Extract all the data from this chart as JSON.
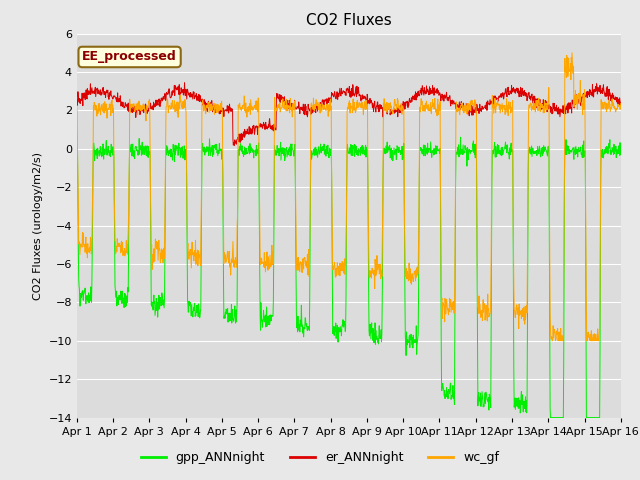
{
  "title": "CO2 Fluxes",
  "ylabel": "CO2 Fluxes (urology/m2/s)",
  "ylim": [
    -14,
    6
  ],
  "xlim": [
    0,
    15
  ],
  "background_color": "#e8e8e8",
  "plot_bg_color": "#dcdcdc",
  "grid_color": "#ffffff",
  "annotation_text": "EE_processed",
  "annotation_color": "#8b0000",
  "annotation_bg": "#ffffdd",
  "legend_labels": [
    "gpp_ANNnight",
    "er_ANNnight",
    "wc_gf"
  ],
  "legend_colors": [
    "#00ee00",
    "#dd0000",
    "#ffa500"
  ],
  "title_fontsize": 11,
  "tick_label_fontsize": 8,
  "n_days": 15,
  "pts_per_day": 96
}
